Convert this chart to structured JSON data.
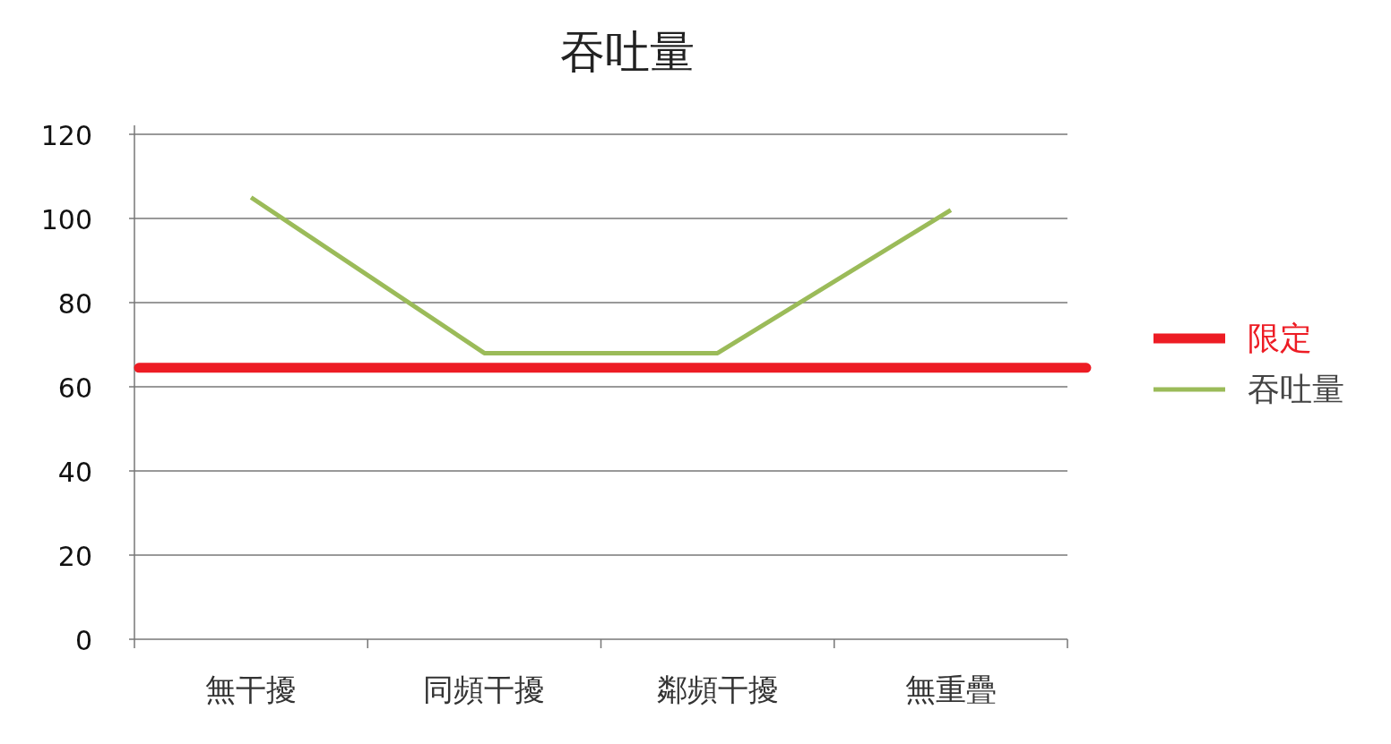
{
  "chart_data": {
    "type": "line",
    "title": "吞吐量",
    "categories": [
      "無干擾",
      "同頻干擾",
      "鄰頻干擾",
      "無重疊"
    ],
    "series": [
      {
        "name": "吞吐量",
        "color": "#9bbb59",
        "values": [
          105,
          68,
          68,
          102
        ]
      }
    ],
    "ref_lines": [
      {
        "axis": "y",
        "value": 64.5,
        "label": "限定",
        "color": "#ed1c24"
      }
    ],
    "ylim": [
      0,
      120
    ],
    "yticks": [
      0,
      20,
      40,
      60,
      80,
      100,
      120
    ],
    "grid": "y",
    "legend": "right",
    "marker": "none"
  }
}
